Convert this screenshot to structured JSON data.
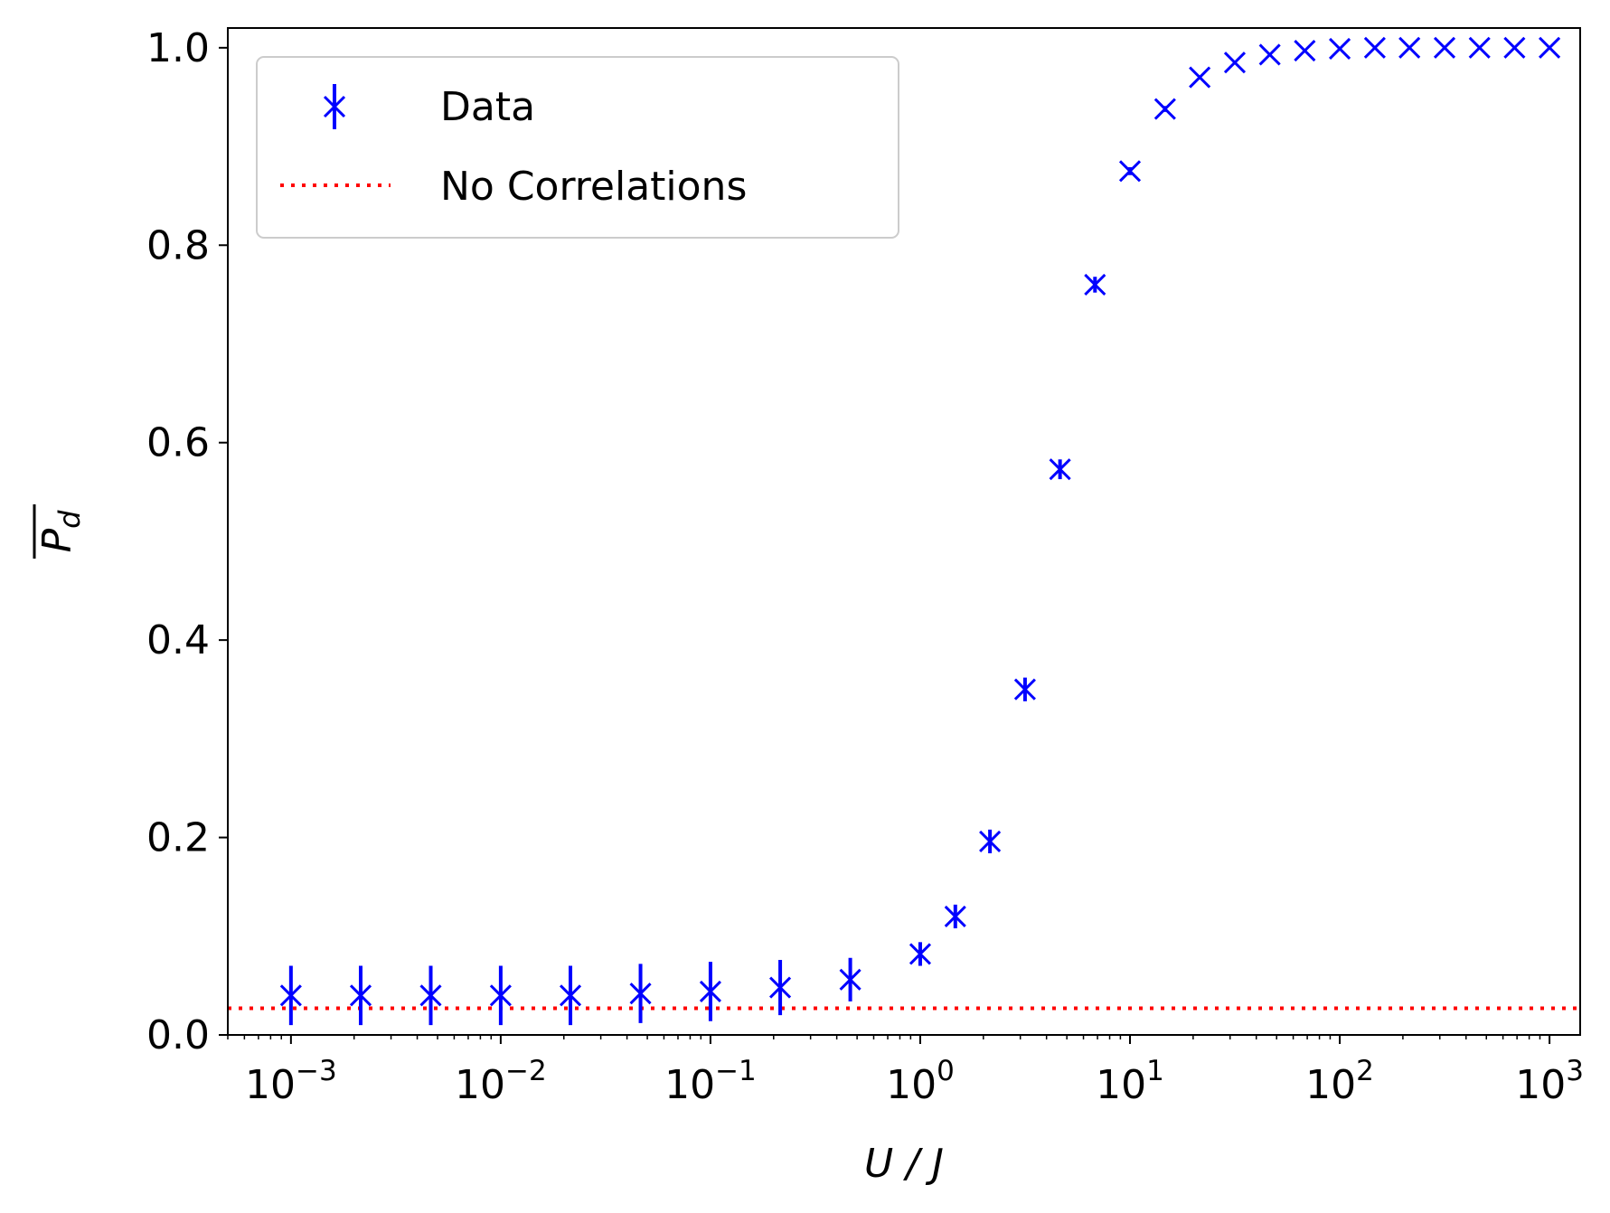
{
  "chart_data": {
    "type": "scatter",
    "title": "",
    "xlabel": "U / J",
    "ylabel": "P_d",
    "xscale": "log",
    "xlim": [
      0.0005,
      1400
    ],
    "ylim": [
      0.0,
      1.02
    ],
    "xticks": [
      {
        "value": 0.001,
        "base": "10",
        "exp": "−3"
      },
      {
        "value": 0.01,
        "base": "10",
        "exp": "−2"
      },
      {
        "value": 0.1,
        "base": "10",
        "exp": "−1"
      },
      {
        "value": 1,
        "base": "10",
        "exp": "0"
      },
      {
        "value": 10,
        "base": "10",
        "exp": "1"
      },
      {
        "value": 100,
        "base": "10",
        "exp": "2"
      },
      {
        "value": 1000,
        "base": "10",
        "exp": "3"
      }
    ],
    "yticks": [
      {
        "value": 0.0,
        "label": "0.0"
      },
      {
        "value": 0.2,
        "label": "0.2"
      },
      {
        "value": 0.4,
        "label": "0.4"
      },
      {
        "value": 0.6,
        "label": "0.6"
      },
      {
        "value": 0.8,
        "label": "0.8"
      },
      {
        "value": 1.0,
        "label": "1.0"
      }
    ],
    "grid": false,
    "legend_position": "top-left",
    "series": [
      {
        "name": "Data",
        "color": "#0000ff",
        "marker": "x",
        "points": [
          {
            "x": 0.001,
            "y": 0.04,
            "err": 0.03
          },
          {
            "x": 0.00215,
            "y": 0.04,
            "err": 0.03
          },
          {
            "x": 0.00464,
            "y": 0.04,
            "err": 0.03
          },
          {
            "x": 0.01,
            "y": 0.04,
            "err": 0.03
          },
          {
            "x": 0.0215,
            "y": 0.04,
            "err": 0.03
          },
          {
            "x": 0.0464,
            "y": 0.042,
            "err": 0.03
          },
          {
            "x": 0.1,
            "y": 0.044,
            "err": 0.03
          },
          {
            "x": 0.215,
            "y": 0.048,
            "err": 0.028
          },
          {
            "x": 0.464,
            "y": 0.056,
            "err": 0.022
          },
          {
            "x": 1.0,
            "y": 0.082,
            "err": 0.012
          },
          {
            "x": 1.47,
            "y": 0.12,
            "err": 0.012
          },
          {
            "x": 2.15,
            "y": 0.196,
            "err": 0.012
          },
          {
            "x": 3.16,
            "y": 0.35,
            "err": 0.012
          },
          {
            "x": 4.64,
            "y": 0.573,
            "err": 0.01
          },
          {
            "x": 6.81,
            "y": 0.76,
            "err": 0.008
          },
          {
            "x": 10.0,
            "y": 0.875,
            "err": 0.004
          },
          {
            "x": 14.7,
            "y": 0.938,
            "err": 0.003
          },
          {
            "x": 21.5,
            "y": 0.97,
            "err": 0.002
          },
          {
            "x": 31.6,
            "y": 0.985,
            "err": 0.002
          },
          {
            "x": 46.4,
            "y": 0.993,
            "err": 0.001
          },
          {
            "x": 68.1,
            "y": 0.997,
            "err": 0.001
          },
          {
            "x": 100,
            "y": 0.999,
            "err": 0.0
          },
          {
            "x": 147,
            "y": 1.0,
            "err": 0.0
          },
          {
            "x": 215,
            "y": 1.0,
            "err": 0.0
          },
          {
            "x": 316,
            "y": 1.0,
            "err": 0.0
          },
          {
            "x": 464,
            "y": 1.0,
            "err": 0.0
          },
          {
            "x": 681,
            "y": 1.0,
            "err": 0.0
          },
          {
            "x": 1000,
            "y": 1.0,
            "err": 0.0
          }
        ]
      },
      {
        "name": "No Correlations",
        "color": "#ff0000",
        "style": "dotted",
        "hline": 0.027
      }
    ],
    "legend": [
      {
        "label": "Data"
      },
      {
        "label": "No Correlations"
      }
    ]
  }
}
